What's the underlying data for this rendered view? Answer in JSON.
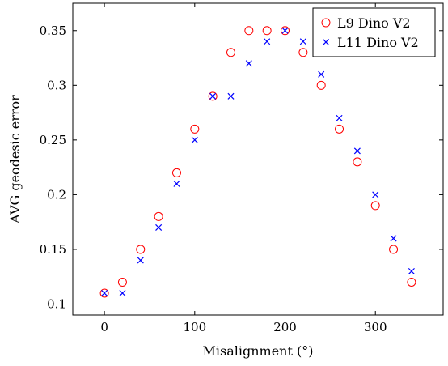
{
  "chart_data": {
    "type": "scatter",
    "title": "",
    "xlabel": "Misalignment (°)",
    "ylabel": "AVG geodesic error",
    "xlim": [
      -35,
      375
    ],
    "ylim": [
      0.09,
      0.375
    ],
    "xticks": [
      {
        "value": 0,
        "label": "0"
      },
      {
        "value": 100,
        "label": "100"
      },
      {
        "value": 200,
        "label": "200"
      },
      {
        "value": 300,
        "label": "300"
      }
    ],
    "yticks": [
      {
        "value": 0.1,
        "label": "0.1"
      },
      {
        "value": 0.15,
        "label": "0.15"
      },
      {
        "value": 0.2,
        "label": "0.2"
      },
      {
        "value": 0.25,
        "label": "0.25"
      },
      {
        "value": 0.3,
        "label": "0.3"
      },
      {
        "value": 0.35,
        "label": "0.35"
      }
    ],
    "grid": false,
    "legend_position": "top-right",
    "x": [
      0,
      20,
      40,
      60,
      80,
      100,
      120,
      140,
      160,
      180,
      200,
      220,
      240,
      260,
      280,
      300,
      320,
      340
    ],
    "series": [
      {
        "name": "L9 Dino V2",
        "marker": "circle",
        "color": "#ff0000",
        "values": [
          0.11,
          0.12,
          0.15,
          0.18,
          0.22,
          0.26,
          0.29,
          0.33,
          0.35,
          0.35,
          0.35,
          0.33,
          0.3,
          0.26,
          0.23,
          0.19,
          0.15,
          0.12
        ]
      },
      {
        "name": "L11 Dino V2",
        "marker": "cross",
        "color": "#0000ff",
        "values": [
          0.11,
          0.11,
          0.14,
          0.17,
          0.21,
          0.25,
          0.29,
          0.29,
          0.32,
          0.34,
          0.35,
          0.34,
          0.31,
          0.27,
          0.24,
          0.2,
          0.16,
          0.13
        ]
      }
    ]
  }
}
